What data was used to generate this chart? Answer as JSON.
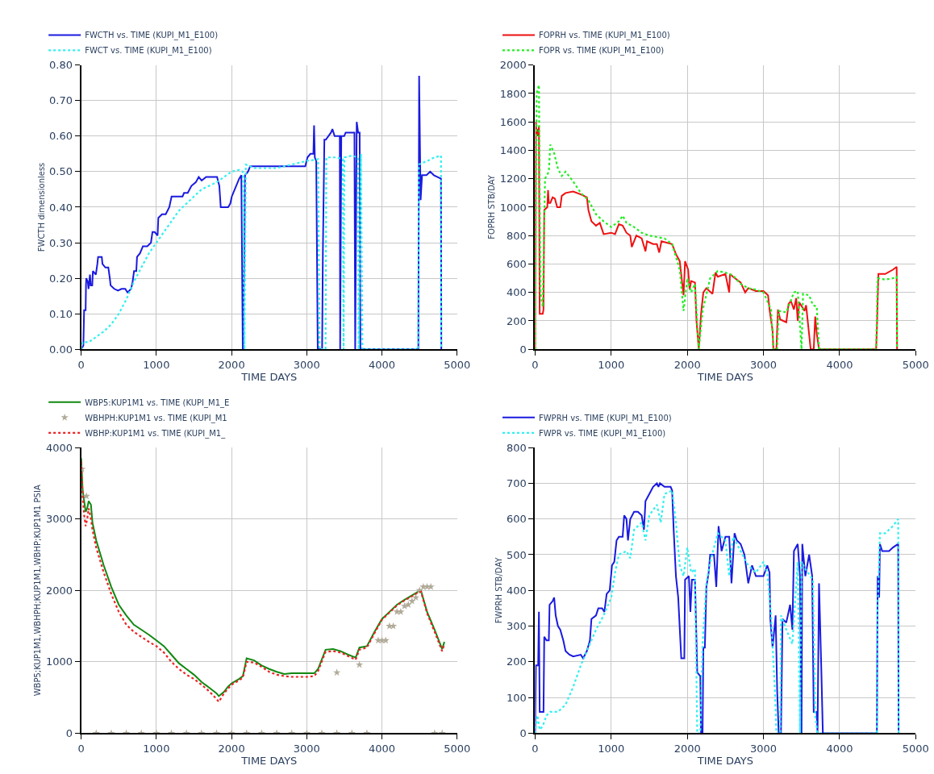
{
  "chart_data": [
    {
      "type": "line",
      "xlabel": "TIME DAYS",
      "ylabel": "FWCTH dimensionless",
      "xlim": [
        0,
        5000
      ],
      "xticks": [
        0,
        1000,
        2000,
        3000,
        4000,
        5000
      ],
      "ylim": [
        0,
        0.8
      ],
      "yticks": [
        {
          "value": 0,
          "label": "0.00"
        },
        {
          "value": 0.1,
          "label": "0.10"
        },
        {
          "value": 0.2,
          "label": "0.20"
        },
        {
          "value": 0.3,
          "label": "0.30"
        },
        {
          "value": 0.4,
          "label": "0.40"
        },
        {
          "value": 0.5,
          "label": "0.50"
        },
        {
          "value": 0.6,
          "label": "0.60"
        },
        {
          "value": 0.7,
          "label": "0.70"
        },
        {
          "value": 0.8,
          "label": "0.80"
        }
      ],
      "grid": true,
      "legend": "top left",
      "series": [
        {
          "name": "FWCTH vs. TIME (KUPI_M1_E100)",
          "color": "#1a1ae0",
          "line_style": "solid",
          "x": [
            0,
            29,
            39,
            59,
            64,
            68,
            88,
            98,
            117,
            127,
            147,
            156,
            195,
            215,
            225,
            274,
            283,
            322,
            361,
            381,
            391,
            440,
            489,
            537,
            586,
            616,
            664,
            684,
            703,
            733,
            743,
            782,
            821,
            879,
            928,
            948,
            977,
            1016,
            1026,
            1075,
            1124,
            1172,
            1202,
            1270,
            1348,
            1368,
            1417,
            1466,
            1524,
            1563,
            1602,
            1661,
            1807,
            1837,
            1856,
            1954,
            1983,
            2003,
            2101,
            2130,
            2149,
            2169,
            2179,
            2218,
            2247,
            2931,
            2980,
            3009,
            3048,
            3088,
            3097,
            3107,
            3126,
            3146,
            3204,
            3214,
            3234,
            3253,
            3322,
            3341,
            3370,
            3439,
            3444,
            3459,
            3498,
            3517,
            3634,
            3644,
            3664,
            3683,
            3703,
            3713,
            3908,
            4396,
            4484,
            4494,
            4514,
            4533,
            4592,
            4641,
            4690,
            4785,
            4789
          ],
          "values": [
            0.0,
            0.01,
            0.11,
            0.11,
            0.18,
            0.2,
            0.19,
            0.17,
            0.21,
            0.18,
            0.18,
            0.22,
            0.21,
            0.24,
            0.26,
            0.26,
            0.24,
            0.23,
            0.23,
            0.2,
            0.18,
            0.17,
            0.165,
            0.17,
            0.17,
            0.16,
            0.17,
            0.19,
            0.22,
            0.22,
            0.26,
            0.27,
            0.29,
            0.29,
            0.3,
            0.33,
            0.33,
            0.32,
            0.37,
            0.38,
            0.38,
            0.4,
            0.43,
            0.43,
            0.43,
            0.44,
            0.44,
            0.46,
            0.47,
            0.485,
            0.475,
            0.485,
            0.485,
            0.46,
            0.4,
            0.4,
            0.41,
            0.43,
            0.48,
            0.49,
            0.0,
            0.25,
            0.49,
            0.5,
            0.515,
            0.515,
            0.515,
            0.54,
            0.55,
            0.55,
            0.63,
            0.54,
            0.53,
            0.0,
            0.0,
            0.27,
            0.59,
            0.59,
            0.61,
            0.62,
            0.6,
            0.6,
            0.0,
            0.6,
            0.6,
            0.61,
            0.61,
            0.0,
            0.64,
            0.61,
            0.61,
            0.0,
            0.0,
            0.0,
            0.0,
            0.77,
            0.42,
            0.49,
            0.49,
            0.5,
            0.49,
            0.48,
            0.0
          ]
        },
        {
          "name": "FWCT vs. TIME (KUPI_M1_E100)",
          "color": "#30f0f0",
          "line_style": "dotted",
          "x": [
            0,
            20,
            100,
            200,
            300,
            400,
            500,
            600,
            700,
            800,
            900,
            1000,
            1100,
            1200,
            1300,
            1400,
            1500,
            1600,
            1700,
            1800,
            1900,
            2000,
            2100,
            2150,
            2170,
            2190,
            2300,
            2600,
            2800,
            3000,
            3150,
            3170,
            3250,
            3260,
            3400,
            3480,
            3490,
            3500,
            3600,
            3680,
            3690,
            3720,
            3740,
            3780,
            4480,
            4490,
            4600,
            4700,
            4785,
            4789
          ],
          "values": [
            0.0,
            0.02,
            0.02,
            0.035,
            0.05,
            0.07,
            0.1,
            0.14,
            0.19,
            0.23,
            0.27,
            0.3,
            0.33,
            0.36,
            0.39,
            0.41,
            0.43,
            0.45,
            0.46,
            0.47,
            0.485,
            0.5,
            0.505,
            0.5,
            0.0,
            0.52,
            0.51,
            0.51,
            0.52,
            0.53,
            0.535,
            0.0,
            0.0,
            0.54,
            0.54,
            0.535,
            0.0,
            0.54,
            0.545,
            0.54,
            0.0,
            0.55,
            0.0,
            0.0,
            0.0,
            0.52,
            0.53,
            0.54,
            0.545,
            0.0
          ]
        }
      ]
    },
    {
      "type": "line",
      "xlabel": "TIME DAYS",
      "ylabel": "FOPRH STB/DAY",
      "xlim": [
        0,
        5000
      ],
      "xticks": [
        0,
        1000,
        2000,
        3000,
        4000,
        5000
      ],
      "ylim": [
        0,
        2000
      ],
      "yticks": [
        0,
        200,
        400,
        600,
        800,
        1000,
        1200,
        1400,
        1600,
        1800,
        2000
      ],
      "grid": true,
      "legend": "top left",
      "series": [
        {
          "name": "FOPRH vs. TIME (KUPI_M1_E100)",
          "color": "#ee1111",
          "line_style": "solid",
          "x": [
            0,
            10,
            20,
            30,
            40,
            50,
            60,
            100,
            110,
            120,
            160,
            170,
            180,
            200,
            230,
            260,
            290,
            330,
            350,
            400,
            500,
            600,
            680,
            700,
            740,
            800,
            850,
            900,
            1000,
            1050,
            1100,
            1150,
            1200,
            1250,
            1270,
            1330,
            1400,
            1450,
            1470,
            1550,
            1600,
            1630,
            1660,
            1800,
            1850,
            1900,
            1950,
            1970,
            2010,
            2030,
            2050,
            2100,
            2120,
            2150,
            2180,
            2210,
            2250,
            2330,
            2370,
            2400,
            2500,
            2550,
            2560,
            2600,
            2700,
            2760,
            2800,
            2900,
            3000,
            3060,
            3080,
            3120,
            3130,
            3170,
            3190,
            3220,
            3300,
            3330,
            3360,
            3400,
            3430,
            3450,
            3470,
            3540,
            3560,
            3620,
            3660,
            3680,
            3700,
            3730,
            3780,
            4480,
            4490,
            4510,
            4600,
            4700,
            4750,
            4755
          ],
          "values": [
            0,
            1600,
            1500,
            1550,
            1500,
            1570,
            250,
            250,
            280,
            980,
            1000,
            1120,
            1030,
            1030,
            1070,
            1060,
            1000,
            1000,
            1080,
            1100,
            1110,
            1090,
            1070,
            980,
            900,
            870,
            890,
            810,
            820,
            810,
            880,
            870,
            820,
            800,
            720,
            800,
            780,
            690,
            760,
            740,
            740,
            680,
            760,
            740,
            670,
            620,
            380,
            620,
            560,
            420,
            480,
            470,
            200,
            0,
            250,
            400,
            430,
            390,
            540,
            510,
            530,
            400,
            530,
            510,
            470,
            400,
            430,
            410,
            410,
            380,
            280,
            130,
            0,
            0,
            280,
            210,
            190,
            320,
            340,
            280,
            360,
            200,
            330,
            270,
            310,
            0,
            0,
            230,
            110,
            0,
            0,
            0,
            140,
            530,
            530,
            560,
            580,
            0
          ]
        },
        {
          "name": "FOPR vs. TIME (KUPI_M1_E100)",
          "color": "#22ee22",
          "line_style": "dotted",
          "x": [
            0,
            20,
            50,
            70,
            100,
            130,
            180,
            200,
            250,
            300,
            350,
            400,
            500,
            600,
            700,
            800,
            900,
            1000,
            1100,
            1150,
            1200,
            1300,
            1400,
            1500,
            1600,
            1700,
            1800,
            1900,
            1950,
            2000,
            2050,
            2100,
            2150,
            2200,
            2300,
            2400,
            2500,
            2600,
            2700,
            2800,
            2900,
            3000,
            3100,
            3130,
            3180,
            3200,
            3300,
            3400,
            3450,
            3500,
            3520,
            3600,
            3650,
            3700,
            3730,
            3780,
            4480,
            4500,
            4600,
            4700,
            4750,
            4755
          ],
          "values": [
            0,
            1800,
            1860,
            400,
            300,
            1200,
            1250,
            1440,
            1380,
            1270,
            1220,
            1250,
            1180,
            1100,
            1050,
            950,
            900,
            860,
            900,
            940,
            890,
            860,
            820,
            800,
            790,
            780,
            740,
            560,
            270,
            500,
            400,
            460,
            0,
            270,
            500,
            550,
            540,
            520,
            460,
            430,
            420,
            400,
            280,
            0,
            0,
            270,
            260,
            400,
            410,
            0,
            390,
            380,
            310,
            300,
            0,
            0,
            0,
            500,
            490,
            500,
            510,
            0
          ]
        }
      ]
    },
    {
      "type": "line",
      "xlabel": "TIME DAYS",
      "ylabel": "WBP5;KUP1M1,WBHPH;KUP1M1,WBHP;KUP1M1 PSIA",
      "xlim": [
        0,
        5000
      ],
      "xticks": [
        0,
        1000,
        2000,
        3000,
        4000,
        5000
      ],
      "ylim": [
        0,
        4000
      ],
      "yticks": [
        0,
        1000,
        2000,
        3000,
        4000
      ],
      "grid": true,
      "legend": "top left",
      "series": [
        {
          "name": "WBP5:KUP1M1 vs. TIME (KUPI_M1_E",
          "color": "#118811",
          "line_style": "solid",
          "x": [
            0,
            20,
            40,
            60,
            80,
            100,
            130,
            150,
            200,
            300,
            400,
            500,
            600,
            700,
            800,
            900,
            1000,
            1100,
            1200,
            1300,
            1400,
            1500,
            1600,
            1700,
            1800,
            1830,
            1900,
            1950,
            2000,
            2050,
            2100,
            2150,
            2200,
            2300,
            2400,
            2500,
            2600,
            2700,
            2800,
            2900,
            3000,
            3100,
            3150,
            3250,
            3350,
            3450,
            3550,
            3650,
            3700,
            3800,
            3900,
            4000,
            4100,
            4200,
            4300,
            4400,
            4480,
            4520,
            4600,
            4700,
            4800,
            4830
          ],
          "values": [
            3850,
            3400,
            3250,
            3100,
            3150,
            3250,
            3200,
            2950,
            2700,
            2350,
            2050,
            1800,
            1650,
            1520,
            1450,
            1380,
            1300,
            1220,
            1100,
            980,
            900,
            820,
            720,
            640,
            560,
            520,
            580,
            650,
            700,
            730,
            760,
            800,
            1050,
            1020,
            950,
            900,
            860,
            830,
            840,
            840,
            840,
            840,
            900,
            1170,
            1180,
            1150,
            1100,
            1060,
            1200,
            1220,
            1420,
            1600,
            1700,
            1800,
            1870,
            1930,
            1980,
            1990,
            1700,
            1450,
            1180,
            1280
          ]
        },
        {
          "name": "WBHPH:KUP1M1 vs. TIME (KUPI_M1",
          "color": "#b0aa98",
          "type": "scatter",
          "marker": "star",
          "x": [
            10,
            70,
            200,
            400,
            600,
            800,
            1000,
            1200,
            1400,
            1600,
            1800,
            2000,
            2200,
            2400,
            2600,
            2800,
            3000,
            3200,
            3400,
            3400,
            3600,
            3700,
            3800,
            3950,
            4000,
            4050,
            4100,
            4150,
            4200,
            4250,
            4300,
            4350,
            4400,
            4450,
            4500,
            4550,
            4600,
            4650,
            4700,
            4800
          ],
          "values": [
            3700,
            3320,
            0,
            0,
            0,
            0,
            0,
            0,
            0,
            0,
            0,
            0,
            0,
            0,
            0,
            0,
            0,
            0,
            0,
            850,
            0,
            960,
            0,
            1300,
            1300,
            1300,
            1500,
            1500,
            1700,
            1700,
            1780,
            1800,
            1850,
            1900,
            2000,
            2050,
            2050,
            2050,
            0,
            0
          ]
        },
        {
          "name": "WBHP:KUP1M1 vs. TIME (KUPI_M1_",
          "color": "#ee2222",
          "line_style": "dotted",
          "x": [
            0,
            20,
            40,
            60,
            80,
            100,
            130,
            150,
            200,
            300,
            400,
            500,
            600,
            700,
            800,
            900,
            1000,
            1100,
            1200,
            1300,
            1400,
            1500,
            1600,
            1700,
            1800,
            1830,
            1900,
            2000,
            2100,
            2150,
            2200,
            2300,
            2400,
            2500,
            2600,
            2700,
            2800,
            2900,
            3000,
            3100,
            3150,
            3250,
            3350,
            3450,
            3550,
            3650,
            3700,
            3800,
            3900,
            4000,
            4100,
            4200,
            4300,
            4400,
            4480,
            4520,
            4600,
            4700,
            4800,
            4830
          ],
          "values": [
            3800,
            3300,
            3050,
            2900,
            3000,
            3150,
            3000,
            2850,
            2600,
            2250,
            1950,
            1700,
            1520,
            1420,
            1350,
            1280,
            1220,
            1130,
            1000,
            900,
            820,
            760,
            680,
            590,
            480,
            440,
            560,
            680,
            740,
            780,
            1000,
            990,
            930,
            860,
            820,
            800,
            790,
            790,
            790,
            800,
            870,
            1140,
            1150,
            1130,
            1080,
            1030,
            1170,
            1200,
            1400,
            1590,
            1690,
            1790,
            1860,
            1920,
            1970,
            1980,
            1680,
            1420,
            1150,
            1250
          ]
        }
      ]
    },
    {
      "type": "line",
      "xlabel": "TIME DAYS",
      "ylabel": "FWPRH STB/DAY",
      "xlim": [
        0,
        5000
      ],
      "xticks": [
        0,
        1000,
        2000,
        3000,
        4000,
        5000
      ],
      "ylim": [
        0,
        800
      ],
      "yticks": [
        0,
        100,
        200,
        300,
        400,
        500,
        600,
        700,
        800
      ],
      "grid": true,
      "legend": "top left",
      "series": [
        {
          "name": "FWPRH vs. TIME (KUPI_M1_E100)",
          "color": "#1a1ae0",
          "line_style": "solid",
          "x": [
            0,
            10,
            40,
            50,
            60,
            110,
            120,
            150,
            180,
            190,
            230,
            250,
            270,
            300,
            330,
            370,
            400,
            450,
            500,
            600,
            630,
            680,
            720,
            740,
            800,
            830,
            880,
            910,
            940,
            980,
            1010,
            1040,
            1070,
            1100,
            1150,
            1170,
            1200,
            1220,
            1250,
            1300,
            1350,
            1400,
            1430,
            1450,
            1500,
            1550,
            1600,
            1620,
            1640,
            1700,
            1780,
            1800,
            1820,
            1850,
            1880,
            1920,
            1960,
            1970,
            2020,
            2040,
            2060,
            2100,
            2130,
            2170,
            2180,
            2200,
            2210,
            2230,
            2250,
            2280,
            2300,
            2350,
            2380,
            2410,
            2450,
            2500,
            2550,
            2580,
            2620,
            2650,
            2700,
            2750,
            2800,
            2850,
            2900,
            3000,
            3050,
            3080,
            3090,
            3120,
            3160,
            3180,
            3200,
            3230,
            3250,
            3300,
            3350,
            3380,
            3400,
            3450,
            3480,
            3500,
            3510,
            3550,
            3600,
            3640,
            3660,
            3700,
            3710,
            3730,
            3760,
            3780,
            4490,
            4500,
            4520,
            4530,
            4560,
            4650,
            4700,
            4770,
            4775
          ],
          "values": [
            0,
            190,
            190,
            340,
            60,
            60,
            270,
            260,
            260,
            360,
            370,
            380,
            330,
            300,
            290,
            260,
            230,
            220,
            215,
            220,
            210,
            230,
            260,
            320,
            330,
            350,
            350,
            340,
            390,
            400,
            470,
            480,
            540,
            550,
            550,
            610,
            600,
            540,
            600,
            620,
            620,
            610,
            570,
            650,
            670,
            690,
            700,
            690,
            700,
            690,
            690,
            680,
            570,
            440,
            380,
            210,
            210,
            430,
            440,
            340,
            430,
            430,
            170,
            160,
            0,
            0,
            240,
            240,
            410,
            450,
            500,
            500,
            410,
            580,
            510,
            550,
            550,
            420,
            560,
            540,
            530,
            500,
            420,
            470,
            440,
            440,
            470,
            450,
            320,
            240,
            330,
            120,
            0,
            0,
            320,
            310,
            360,
            290,
            510,
            530,
            440,
            0,
            530,
            440,
            500,
            440,
            60,
            60,
            0,
            420,
            180,
            0,
            0,
            440,
            380,
            530,
            510,
            510,
            520,
            530,
            0
          ]
        },
        {
          "name": "FWPR vs. TIME (KUPI_M1_E100)",
          "color": "#30f0f0",
          "line_style": "dotted",
          "x": [
            0,
            30,
            60,
            100,
            150,
            200,
            300,
            400,
            500,
            600,
            700,
            800,
            900,
            1000,
            1050,
            1100,
            1200,
            1250,
            1300,
            1400,
            1450,
            1500,
            1600,
            1650,
            1700,
            1800,
            1850,
            1900,
            1950,
            2000,
            2050,
            2100,
            2130,
            2170,
            2200,
            2250,
            2300,
            2400,
            2500,
            2550,
            2600,
            2700,
            2800,
            2900,
            3000,
            3050,
            3100,
            3150,
            3170,
            3220,
            3230,
            3300,
            3380,
            3450,
            3480,
            3500,
            3550,
            3650,
            3680,
            3710,
            3760,
            4490,
            4500,
            4530,
            4600,
            4700,
            4770,
            4775
          ],
          "values": [
            0,
            50,
            10,
            20,
            50,
            60,
            60,
            80,
            130,
            190,
            240,
            290,
            330,
            380,
            450,
            500,
            510,
            490,
            570,
            590,
            540,
            610,
            640,
            590,
            670,
            680,
            590,
            470,
            440,
            520,
            450,
            460,
            0,
            0,
            250,
            420,
            480,
            560,
            540,
            440,
            550,
            510,
            470,
            450,
            480,
            450,
            330,
            120,
            0,
            0,
            330,
            290,
            250,
            480,
            0,
            480,
            460,
            430,
            50,
            0,
            0,
            0,
            350,
            560,
            560,
            580,
            600,
            0
          ]
        }
      ]
    }
  ]
}
